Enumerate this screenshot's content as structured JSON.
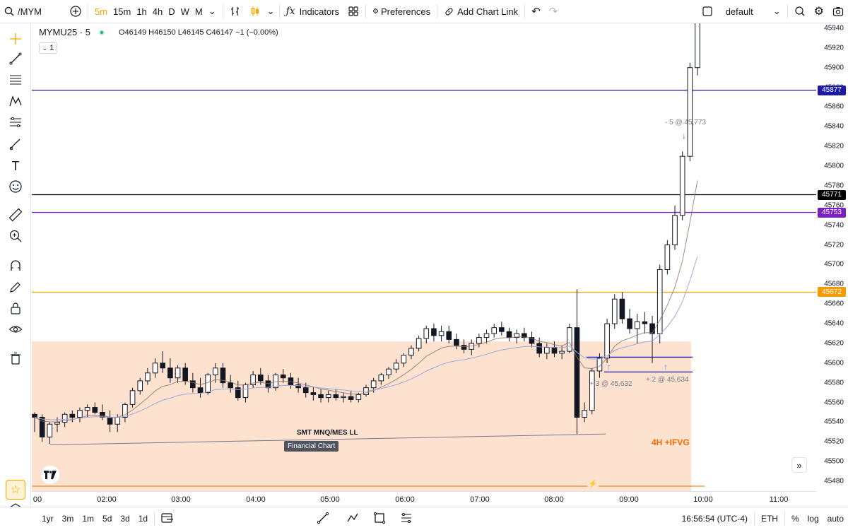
{
  "toolbar": {
    "symbol": "/MYM",
    "intervals": [
      "5m",
      "15m",
      "1h",
      "4h",
      "D",
      "W",
      "M"
    ],
    "active_interval": "5m",
    "indicators_label": "Indicators",
    "preferences_label": "Preferences",
    "add_chart_link_label": "Add Chart Link",
    "layout_name": "default"
  },
  "legend": {
    "title": "MYMU25 · 5",
    "ohlc": "O46149 H46150 L46145 C46147 −1 (−0.00%)",
    "indicator_count": "1"
  },
  "price_scale": {
    "ticks": [
      "45940",
      "45920",
      "45900",
      "45880",
      "45860",
      "45840",
      "45820",
      "45800",
      "45780",
      "45760",
      "45740",
      "45720",
      "45700",
      "45680",
      "45660",
      "45640",
      "45620",
      "45600",
      "45580",
      "45560",
      "45540",
      "45520",
      "45500",
      "45480"
    ],
    "badges": [
      {
        "value": "45877",
        "color": "#1a1aa6"
      },
      {
        "value": "45771",
        "color": "#000000"
      },
      {
        "value": "45753",
        "color": "#7a1fc2"
      },
      {
        "value": "45672",
        "color": "#f59a00"
      }
    ]
  },
  "time_scale": {
    "ticks": [
      "00",
      "02:00",
      "03:00",
      "04:00",
      "05:00",
      "06:00",
      "07:00",
      "08:00",
      "09:00",
      "10:00",
      "11:00"
    ]
  },
  "annotations": {
    "smt_label": "SMT MNQ/MES LL",
    "financial_chart_tag": "Financial Chart",
    "ifvg_label": "4H +IFVG",
    "sell_label": "- 5 @ 45,773",
    "buy1_label": "+ 3 @ 45,632",
    "buy2_label": "+ 2 @ 45,634"
  },
  "bottom": {
    "ranges": [
      "1yr",
      "3m",
      "1m",
      "5d",
      "3d",
      "1d"
    ],
    "time": "16:56:54 (UTC-4)",
    "session": "ETH",
    "percent": "%",
    "log": "log",
    "auto": "auto"
  },
  "colors": {
    "zone": "#fde2d0",
    "line_blue": "#1a1aa6",
    "line_black": "#000000",
    "line_purple": "#7a1fc2",
    "line_orange": "#f59a00",
    "accent": "#f7a600"
  },
  "chart_data": {
    "type": "candlestick",
    "symbol": "MYMU25",
    "interval": "5",
    "y_range": [
      45470,
      45945
    ],
    "candles": [
      [
        45548,
        45550,
        45530,
        45545
      ],
      [
        45545,
        45548,
        45520,
        45525
      ],
      [
        45525,
        45540,
        45518,
        45538
      ],
      [
        45538,
        45545,
        45530,
        45540
      ],
      [
        45540,
        45550,
        45535,
        45548
      ],
      [
        45548,
        45552,
        45540,
        45545
      ],
      [
        45545,
        45555,
        45540,
        45552
      ],
      [
        45552,
        45558,
        45545,
        45555
      ],
      [
        45555,
        45560,
        45548,
        45550
      ],
      [
        45550,
        45558,
        45542,
        45545
      ],
      [
        45545,
        45552,
        45530,
        45538
      ],
      [
        45538,
        45548,
        45530,
        45545
      ],
      [
        45545,
        45560,
        45540,
        45558
      ],
      [
        45558,
        45575,
        45555,
        45572
      ],
      [
        45572,
        45585,
        45568,
        45582
      ],
      [
        45582,
        45595,
        45578,
        45590
      ],
      [
        45590,
        45605,
        45585,
        45600
      ],
      [
        45600,
        45612,
        45590,
        45595
      ],
      [
        45595,
        45605,
        45580,
        45585
      ],
      [
        45585,
        45598,
        45580,
        45595
      ],
      [
        45595,
        45600,
        45578,
        45582
      ],
      [
        45582,
        45590,
        45570,
        45575
      ],
      [
        45575,
        45585,
        45565,
        45570
      ],
      [
        45570,
        45590,
        45568,
        45588
      ],
      [
        45588,
        45600,
        45580,
        45595
      ],
      [
        45595,
        45600,
        45575,
        45580
      ],
      [
        45580,
        45588,
        45570,
        45575
      ],
      [
        45575,
        45582,
        45562,
        45565
      ],
      [
        45565,
        45580,
        45560,
        45578
      ],
      [
        45578,
        45592,
        45575,
        45588
      ],
      [
        45588,
        45595,
        45578,
        45582
      ],
      [
        45582,
        45588,
        45570,
        45575
      ],
      [
        45575,
        45590,
        45572,
        45588
      ],
      [
        45588,
        45594,
        45580,
        45585
      ],
      [
        45585,
        45590,
        45574,
        45578
      ],
      [
        45578,
        45585,
        45570,
        45575
      ],
      [
        45575,
        45580,
        45565,
        45570
      ],
      [
        45570,
        45576,
        45562,
        45568
      ],
      [
        45568,
        45574,
        45560,
        45565
      ],
      [
        45565,
        45572,
        45560,
        45568
      ],
      [
        45568,
        45574,
        45562,
        45565
      ],
      [
        45565,
        45570,
        45560,
        45566
      ],
      [
        45566,
        45572,
        45560,
        45563
      ],
      [
        45563,
        45570,
        45560,
        45568
      ],
      [
        45568,
        45578,
        45566,
        45575
      ],
      [
        45575,
        45585,
        45570,
        45582
      ],
      [
        45582,
        45590,
        45578,
        45588
      ],
      [
        45588,
        45596,
        45584,
        45594
      ],
      [
        45594,
        45604,
        45590,
        45600
      ],
      [
        45600,
        45610,
        45596,
        45608
      ],
      [
        45608,
        45618,
        45604,
        45615
      ],
      [
        45615,
        45628,
        45612,
        45625
      ],
      [
        45625,
        45638,
        45620,
        45635
      ],
      [
        45635,
        45640,
        45622,
        45628
      ],
      [
        45628,
        45638,
        45622,
        45632
      ],
      [
        45632,
        45638,
        45620,
        45624
      ],
      [
        45624,
        45630,
        45614,
        45618
      ],
      [
        45618,
        45624,
        45610,
        45614
      ],
      [
        45614,
        45624,
        45608,
        45620
      ],
      [
        45620,
        45630,
        45616,
        45626
      ],
      [
        45626,
        45634,
        45620,
        45630
      ],
      [
        45630,
        45640,
        45626,
        45636
      ],
      [
        45636,
        45642,
        45628,
        45632
      ],
      [
        45632,
        45636,
        45622,
        45626
      ],
      [
        45626,
        45634,
        45620,
        45630
      ],
      [
        45630,
        45636,
        45622,
        45626
      ],
      [
        45626,
        45632,
        45616,
        45620
      ],
      [
        45620,
        45626,
        45606,
        45610
      ],
      [
        45610,
        45620,
        45604,
        45616
      ],
      [
        45616,
        45622,
        45606,
        45610
      ],
      [
        45610,
        45618,
        45604,
        45612
      ],
      [
        45612,
        45640,
        45610,
        45636
      ],
      [
        45636,
        45675,
        45528,
        45545
      ],
      [
        45545,
        45560,
        45540,
        45552
      ],
      [
        45552,
        45595,
        45548,
        45592
      ],
      [
        45592,
        45610,
        45585,
        45605
      ],
      [
        45605,
        45645,
        45600,
        45640
      ],
      [
        45640,
        45670,
        45635,
        45665
      ],
      [
        45665,
        45672,
        45640,
        45645
      ],
      [
        45645,
        45655,
        45630,
        45635
      ],
      [
        45635,
        45650,
        45620,
        45642
      ],
      [
        45642,
        45652,
        45630,
        45640
      ],
      [
        45640,
        45648,
        45600,
        45630
      ],
      [
        45630,
        45700,
        45620,
        45695
      ],
      [
        45695,
        45725,
        45690,
        45720
      ],
      [
        45720,
        45760,
        45715,
        45750
      ],
      [
        45750,
        45815,
        45745,
        45810
      ],
      [
        45810,
        45905,
        45805,
        45900
      ],
      [
        45900,
        45960,
        45892,
        45955
      ]
    ],
    "horizontal_levels": [
      45877,
      45771,
      45753,
      45672,
      45606,
      45591,
      45475
    ]
  }
}
